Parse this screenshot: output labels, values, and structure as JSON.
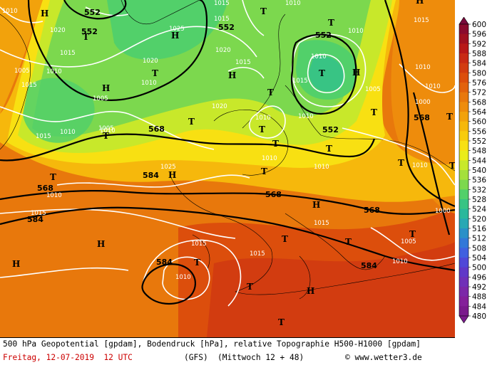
{
  "map": {
    "geopotential_labels": [
      "552",
      "552",
      "552",
      "552",
      "552",
      "568",
      "568",
      "568",
      "568",
      "568",
      "584",
      "584",
      "584",
      "584"
    ],
    "pressure_labels": [
      "1010",
      "1020",
      "1015",
      "1015",
      "1010",
      "1005",
      "1010",
      "1015",
      "1020",
      "1015",
      "1010",
      "1005",
      "1010",
      "1010",
      "1015",
      "1010",
      "1020",
      "1020",
      "1025",
      "1015",
      "1010",
      "1010",
      "1010",
      "1010",
      "1005",
      "1000",
      "1010",
      "1025",
      "1010",
      "1015",
      "1010",
      "1015",
      "1010",
      "1010",
      "1000",
      "1005",
      "1010",
      "1015",
      "1015",
      "1015",
      "1010",
      "1005",
      "1015"
    ],
    "pressure_systems_high": [
      "H",
      "H",
      "H",
      "H",
      "H",
      "H",
      "H",
      "H",
      "H",
      "H",
      "H"
    ],
    "pressure_systems_low": [
      "T",
      "T",
      "T",
      "T",
      "T",
      "T",
      "T",
      "T",
      "T",
      "T",
      "T",
      "T",
      "T",
      "T",
      "T",
      "T",
      "T",
      "T",
      "T",
      "T",
      "T",
      "T",
      "T"
    ]
  },
  "legend": {
    "min_arrow_label": "480",
    "max_arrow_label": "600",
    "values": [
      "600",
      "596",
      "592",
      "588",
      "584",
      "580",
      "576",
      "572",
      "568",
      "564",
      "560",
      "556",
      "552",
      "548",
      "544",
      "540",
      "536",
      "532",
      "528",
      "524",
      "520",
      "516",
      "512",
      "508",
      "504",
      "500",
      "496",
      "492",
      "488",
      "484",
      "480"
    ],
    "colors": [
      "#7a0a3c",
      "#8a0a2e",
      "#a01020",
      "#b81818",
      "#c82a14",
      "#d23c10",
      "#dc4e0c",
      "#e2620c",
      "#e8780c",
      "#ee8c0c",
      "#f2a20c",
      "#f6b80c",
      "#f8cc0c",
      "#f8e012",
      "#eaec1a",
      "#c8e82a",
      "#a4e03c",
      "#7cd84e",
      "#52d06a",
      "#38c484",
      "#2ab89c",
      "#28a8b4",
      "#2a90c8",
      "#3278d8",
      "#4060e0",
      "#5048d8",
      "#6038c8",
      "#7030b8",
      "#7c28a8",
      "#84209a",
      "#7a1a8c"
    ]
  },
  "caption": {
    "line1": "500 hPa Geopotential [gpdam], Bodendruck [hPa], relative Topographie H500-H1000 [gpdam]",
    "date": "Freitag, 12-07-2019  12 UTC",
    "model": "(GFS)",
    "run": "(Mittwoch 12 + 48)",
    "credit": "© www.wetter3.de"
  }
}
